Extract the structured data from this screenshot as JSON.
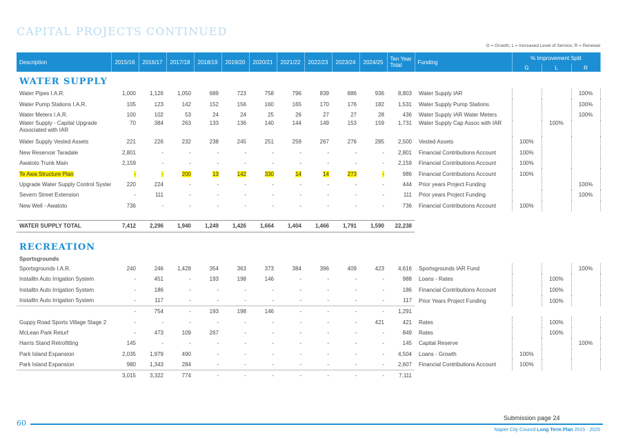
{
  "title": "CAPITAL PROJECTS CONTINUED",
  "legend": "G = Growth, L = Increased Level of Service, R = Renewal",
  "header": {
    "description": "Description",
    "years": [
      "2015/16",
      "2016/17",
      "2017/18",
      "2018/19",
      "2019/20",
      "2020/21",
      "2021/22",
      "2022/23",
      "2023/24",
      "2024/25"
    ],
    "ten_year_total": "Ten Year Total",
    "funding": "Funding",
    "improvement_split": "% Improvement Split",
    "g": "G",
    "l": "L",
    "r": "R"
  },
  "water_supply": {
    "heading": "WATER SUPPLY",
    "rows": [
      {
        "desc": "Water Pipes I.A.R.",
        "vals": [
          "1,000",
          "1,126",
          "1,050",
          "689",
          "723",
          "758",
          "796",
          "839",
          "886",
          "936"
        ],
        "total": "8,803",
        "funding": "Water Supply IAR",
        "g": "",
        "l": "",
        "r": "100%"
      },
      {
        "desc": "Water Pump Stations I.A.R.",
        "vals": [
          "105",
          "123",
          "142",
          "152",
          "156",
          "160",
          "165",
          "170",
          "176",
          "182"
        ],
        "total": "1,531",
        "funding": "Water Supply Pump Stations",
        "g": "",
        "l": "",
        "r": "100%"
      },
      {
        "desc": "Water Meters I.A.R.",
        "vals": [
          "100",
          "102",
          "53",
          "24",
          "24",
          "25",
          "26",
          "27",
          "27",
          "28"
        ],
        "total": "436",
        "funding": "Water Supply IAR Water Meters",
        "g": "",
        "l": "",
        "r": "100%"
      },
      {
        "desc": "Water Supply - Capital Upgrade Associated with IAR",
        "vals": [
          "70",
          "384",
          "263",
          "133",
          "136",
          "140",
          "144",
          "149",
          "153",
          "159"
        ],
        "total": "1,731",
        "funding": "Water Supply Cap Assoc with IAR",
        "g": "",
        "l": "100%",
        "r": ""
      },
      {
        "desc": "Water Supply Vested Assets",
        "vals": [
          "221",
          "226",
          "232",
          "238",
          "245",
          "251",
          "259",
          "267",
          "276",
          "285"
        ],
        "total": "2,500",
        "funding": "Vested Assets",
        "g": "100%",
        "l": "",
        "r": ""
      },
      {
        "desc": "New Reservoir Taradale",
        "vals": [
          "2,801",
          "-",
          "-",
          "-",
          "-",
          "-",
          "-",
          "-",
          "-",
          "-"
        ],
        "total": "2,801",
        "funding": "Financial Contributions Account",
        "g": "100%",
        "l": "",
        "r": ""
      },
      {
        "desc": "Awatoto Trunk Main",
        "vals": [
          "2,159",
          "-",
          "-",
          "-",
          "-",
          "-",
          "-",
          "-",
          "-",
          "-"
        ],
        "total": "2,159",
        "funding": "Financial Contributions Account",
        "g": "100%",
        "l": "",
        "r": ""
      },
      {
        "desc": "Te Awa Structure Plan",
        "vals": [
          "-",
          "-",
          "200",
          "13",
          "142",
          "330",
          "14",
          "14",
          "273",
          "-"
        ],
        "total": "986",
        "funding": "Financial Contributions Account",
        "g": "100%",
        "l": "",
        "r": ""
      },
      {
        "desc": "Upgrade Water Supply Control System",
        "vals": [
          "220",
          "224",
          "-",
          "-",
          "-",
          "-",
          "-",
          "-",
          "-",
          "-"
        ],
        "total": "444",
        "funding": "Prior years Project Funding",
        "g": "",
        "l": "",
        "r": "100%"
      },
      {
        "desc": "Severn Street Extension",
        "vals": [
          "-",
          "111",
          "-",
          "-",
          "-",
          "-",
          "-",
          "-",
          "-",
          "-"
        ],
        "total": "111",
        "funding": "Prior years Project Funding",
        "g": "",
        "l": "",
        "r": "100%"
      },
      {
        "desc": "New Well - Awatoto",
        "vals": [
          "736",
          "-",
          "-",
          "-",
          "-",
          "-",
          "-",
          "-",
          "-",
          "-"
        ],
        "total": "736",
        "funding": "Financial Contributions Account",
        "g": "100%",
        "l": "",
        "r": ""
      }
    ],
    "total": {
      "desc": "WATER SUPPLY TOTAL",
      "vals": [
        "7,412",
        "2,296",
        "1,940",
        "1,249",
        "1,426",
        "1,664",
        "1,404",
        "1,466",
        "1,791",
        "1,590"
      ],
      "total": "22,238"
    }
  },
  "recreation": {
    "heading": "RECREATION",
    "subheading": "Sportsgrounds",
    "rows_a": [
      {
        "desc": "Sportsgrounds I.A.R.",
        "vals": [
          "240",
          "246",
          "1,428",
          "354",
          "363",
          "373",
          "384",
          "396",
          "409",
          "423"
        ],
        "total": "4,616",
        "funding": "Sportsgrounds IAR Fund",
        "g": "",
        "l": "",
        "r": "100%"
      },
      {
        "desc": "Installtn Auto Irrigation System",
        "vals": [
          "-",
          "451",
          "-",
          "193",
          "198",
          "146",
          "-",
          "-",
          "-",
          "-"
        ],
        "total": "988",
        "funding": "Loans - Rates",
        "g": "",
        "l": "100%",
        "r": ""
      },
      {
        "desc": "Installtn Auto Irrigation System",
        "vals": [
          "-",
          "186",
          "-",
          "-",
          "-",
          "-",
          "-",
          "-",
          "-",
          "-"
        ],
        "total": "186",
        "funding": "Financial Contributions Account",
        "g": "",
        "l": "100%",
        "r": ""
      },
      {
        "desc": "Installtn Auto Irrigation System",
        "vals": [
          "-",
          "117",
          "-",
          "-",
          "-",
          "-",
          "-",
          "-",
          "-",
          "-"
        ],
        "total": "117",
        "funding": "Prior Years Project Funding",
        "g": "",
        "l": "100%",
        "r": ""
      }
    ],
    "subtotal_a": {
      "vals": [
        "-",
        "754",
        "-",
        "193",
        "198",
        "146",
        "-",
        "-",
        "-",
        "-"
      ],
      "total": "1,291"
    },
    "rows_b": [
      {
        "desc": "Guppy Road Sports Village Stage 2",
        "vals": [
          "-",
          "-",
          "-",
          "-",
          "-",
          "-",
          "-",
          "-",
          "-",
          "421"
        ],
        "total": "421",
        "funding": "Rates",
        "g": "",
        "l": "100%",
        "r": ""
      },
      {
        "desc": "McLean Park Returf",
        "vals": [
          "-",
          "473",
          "109",
          "267",
          "-",
          "-",
          "-",
          "-",
          "-",
          "-"
        ],
        "total": "849",
        "funding": "Rates",
        "g": "",
        "l": "100%",
        "r": ""
      },
      {
        "desc": "Harris Stand Retrofitting",
        "vals": [
          "145",
          "-",
          "-",
          "-",
          "-",
          "-",
          "-",
          "-",
          "-",
          "-"
        ],
        "total": "145",
        "funding": "Capital Reserve",
        "g": "",
        "l": "",
        "r": "100%"
      },
      {
        "desc": "Park Island Expansion",
        "vals": [
          "2,035",
          "1,979",
          "490",
          "-",
          "-",
          "-",
          "-",
          "-",
          "-",
          "-"
        ],
        "total": "4,504",
        "funding": "Loans - Growth",
        "g": "100%",
        "l": "",
        "r": ""
      },
      {
        "desc": "Park Island Expansion",
        "vals": [
          "980",
          "1,343",
          "284",
          "-",
          "-",
          "-",
          "-",
          "-",
          "-",
          "-"
        ],
        "total": "2,607",
        "funding": "Financial Contributions Account",
        "g": "100%",
        "l": "",
        "r": ""
      }
    ],
    "subtotal_b": {
      "vals": [
        "3,015",
        "3,322",
        "774",
        "-",
        "-",
        "-",
        "-",
        "-",
        "-",
        "-"
      ],
      "total": "7,111"
    }
  },
  "footer": {
    "page_number": "60",
    "submission": "Submission page 24",
    "plan_prefix": "Napier City Council",
    "plan_bold": "Long Term Plan",
    "plan_years": "2015 - 2025"
  },
  "colors": {
    "accent": "#1c8fd4",
    "highlight": "#fff200"
  }
}
